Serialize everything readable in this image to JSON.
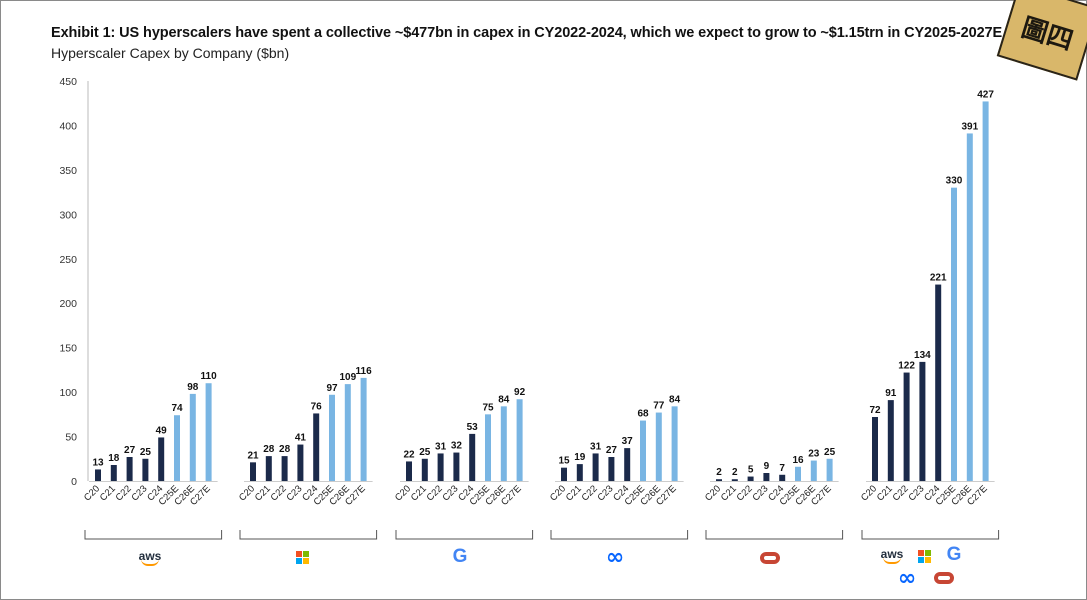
{
  "title": "Exhibit 1: US hyperscalers have spent a collective ~$477bn in capex in CY2022-2024, which we expect to grow to ~$1.15trn in CY2025-2027E",
  "subtitle": "Hyperscaler Capex by Company ($bn)",
  "stamp_text": "圖四",
  "colors": {
    "actual": "#1b2a4a",
    "estimate": "#79b5e3"
  },
  "chart_data": {
    "type": "bar",
    "title": "Hyperscaler Capex by Company ($bn)",
    "ylim": [
      0,
      450
    ],
    "yticks": [
      0,
      50,
      100,
      150,
      200,
      250,
      300,
      350,
      400,
      450
    ],
    "grid": false,
    "categories": [
      "C20",
      "C21",
      "C22",
      "C23",
      "C24",
      "C25E",
      "C26E",
      "C27E"
    ],
    "estimate_from_index": 5,
    "groups": [
      {
        "logo": "aws",
        "logo_text": "aws",
        "values": [
          13,
          18,
          27,
          25,
          49,
          74,
          98,
          110
        ]
      },
      {
        "logo": "microsoft",
        "values": [
          21,
          28,
          28,
          41,
          76,
          97,
          109,
          116
        ]
      },
      {
        "logo": "google",
        "logo_text": "G",
        "values": [
          22,
          25,
          31,
          32,
          53,
          75,
          84,
          92
        ]
      },
      {
        "logo": "meta",
        "logo_text": "∞",
        "values": [
          15,
          19,
          31,
          27,
          37,
          68,
          77,
          84
        ]
      },
      {
        "logo": "oracle",
        "values": [
          2,
          2,
          5,
          9,
          7,
          16,
          23,
          25
        ]
      },
      {
        "logo": "combined",
        "logo_text": "aws",
        "logo_text_2": "G",
        "logo_text_3": "∞",
        "values": [
          72,
          91,
          122,
          134,
          221,
          330,
          391,
          427
        ]
      }
    ]
  }
}
